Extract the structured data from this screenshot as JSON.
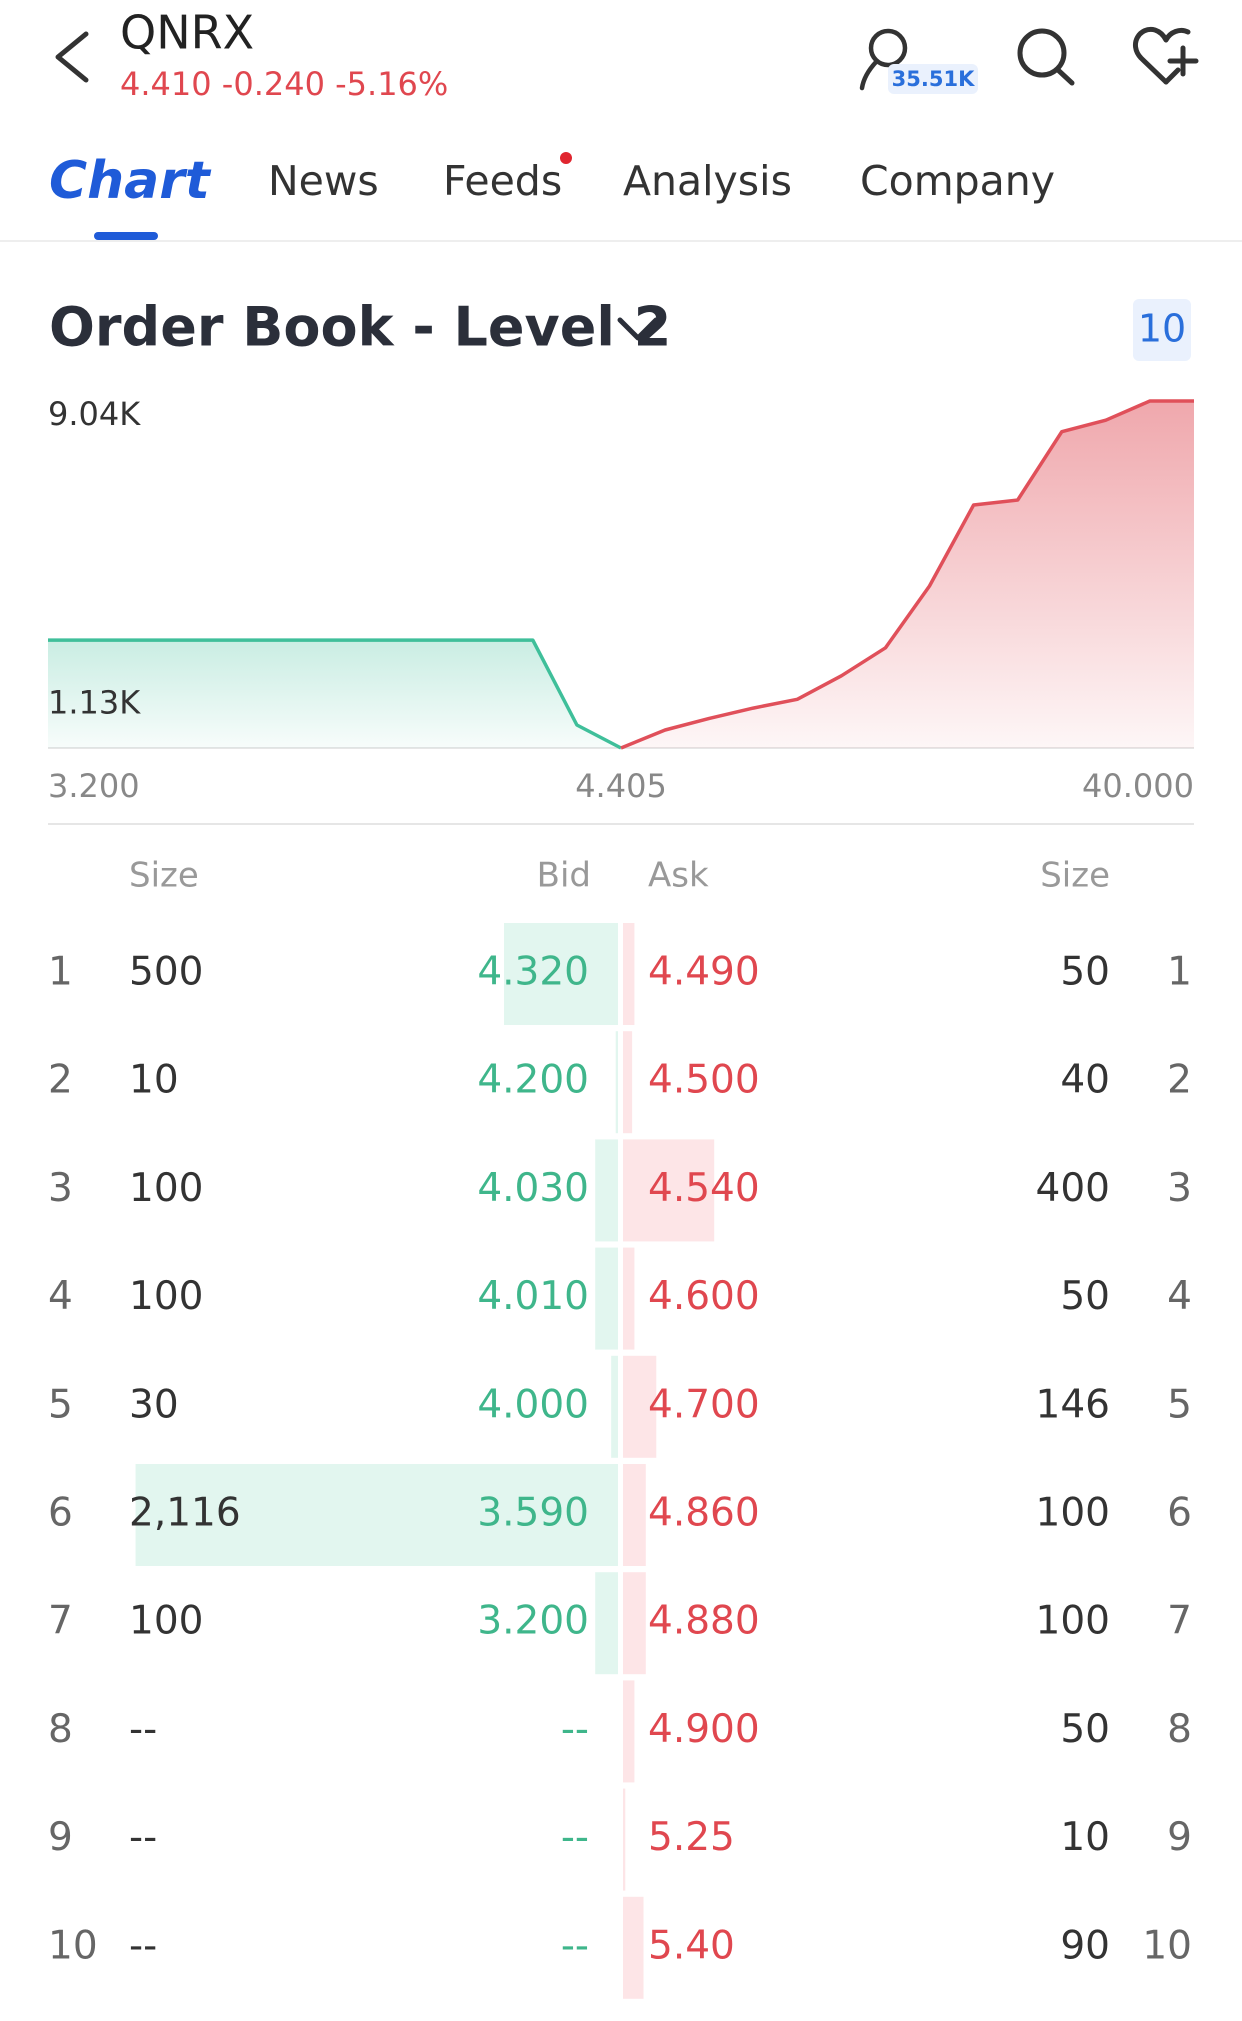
{
  "header": {
    "symbol": "QNRX",
    "quote": "4.410 -0.240 -5.16%",
    "followers": "35.51K"
  },
  "tabs": [
    "Chart",
    "News",
    "Feeds",
    "Analysis",
    "Company"
  ],
  "section": {
    "title": "Order Book - Level 2",
    "depth_levels": 10
  },
  "chart_data": {
    "type": "depth",
    "bid": {
      "color": "#3fbf9a",
      "values": [
        2810,
        2810,
        2810,
        2810,
        2810,
        2810,
        2810,
        2810,
        2810,
        2810,
        2810,
        2810,
        600,
        0
      ]
    },
    "ask": {
      "color": "#e0505a",
      "values": [
        0,
        470,
        770,
        1040,
        1270,
        1880,
        2610,
        4220,
        6330,
        6460,
        8240,
        8540,
        9040,
        9040
      ]
    },
    "ylim": [
      0,
      9040
    ],
    "yticks": [
      {
        "value": 1130,
        "label": "1.13K"
      },
      {
        "value": 9040,
        "label": "9.04K"
      }
    ],
    "x_labels": [
      "3.200",
      "4.405",
      "40.000"
    ]
  },
  "order_book": {
    "columns": [
      "Size",
      "Bid",
      "Ask",
      "Size"
    ],
    "rows": [
      {
        "level": 1,
        "bid_size": 500,
        "bid": "4.320",
        "ask": "4.490",
        "ask_size": 50
      },
      {
        "level": 2,
        "bid_size": 10,
        "bid": "4.200",
        "ask": "4.500",
        "ask_size": 40
      },
      {
        "level": 3,
        "bid_size": 100,
        "bid": "4.030",
        "ask": "4.540",
        "ask_size": 400
      },
      {
        "level": 4,
        "bid_size": 100,
        "bid": "4.010",
        "ask": "4.600",
        "ask_size": 50
      },
      {
        "level": 5,
        "bid_size": 30,
        "bid": "4.000",
        "ask": "4.700",
        "ask_size": 146
      },
      {
        "level": 6,
        "bid_size": 2116,
        "bid_size_label": "2,116",
        "bid": "3.590",
        "ask": "4.860",
        "ask_size": 100
      },
      {
        "level": 7,
        "bid_size": 100,
        "bid": "3.200",
        "ask": "4.880",
        "ask_size": 100
      },
      {
        "level": 8,
        "bid_size": null,
        "bid_size_label": "--",
        "bid": "--",
        "ask": "4.900",
        "ask_size": 50
      },
      {
        "level": 9,
        "bid_size": null,
        "bid_size_label": "--",
        "bid": "--",
        "ask": "5.25",
        "ask_size": 10
      },
      {
        "level": 10,
        "bid_size": null,
        "bid_size_label": "--",
        "bid": "--",
        "ask": "5.40",
        "ask_size": 90
      }
    ]
  }
}
